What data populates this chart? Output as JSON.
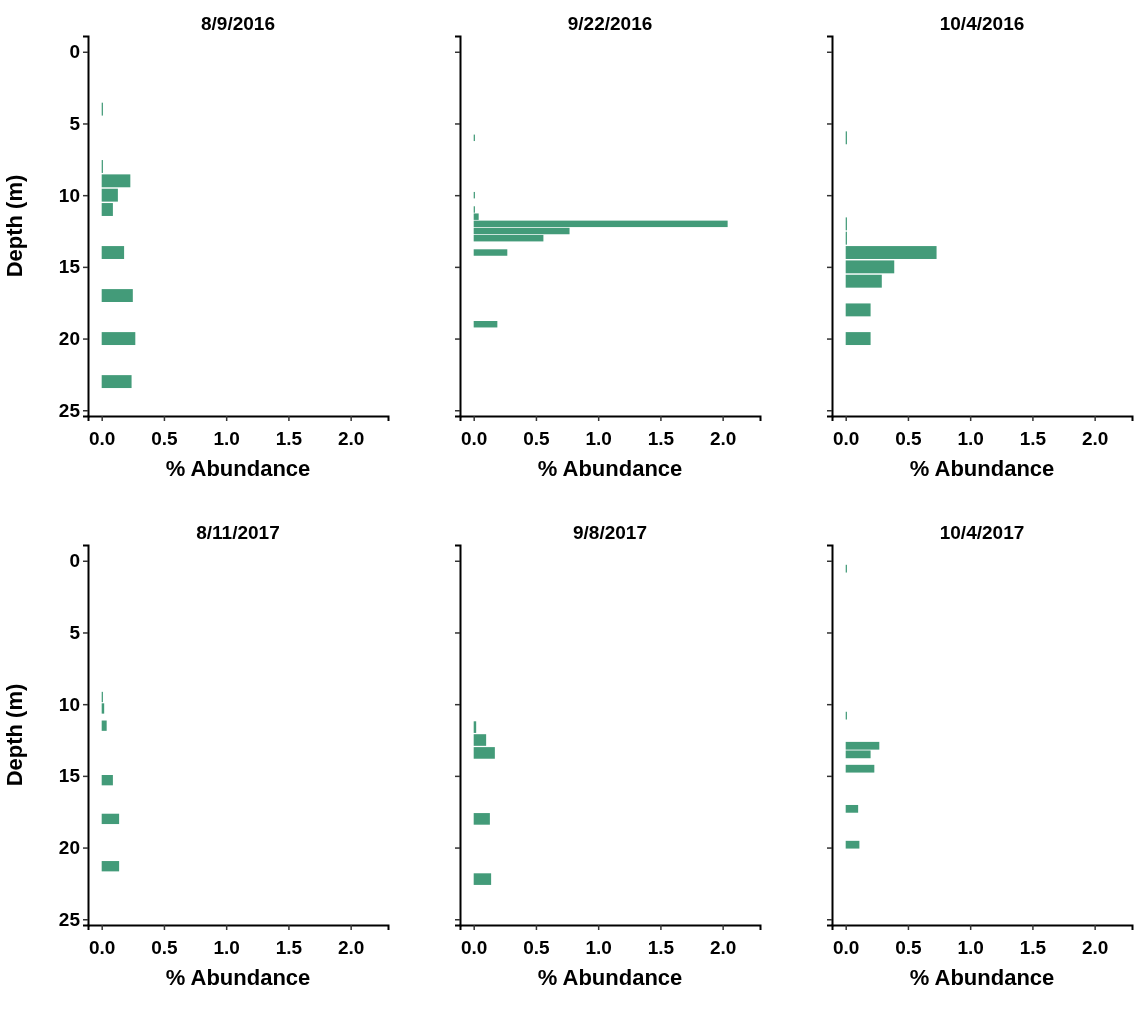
{
  "chart_data": [
    {
      "type": "bar",
      "orientation": "horizontal",
      "title": "8/9/2016",
      "xlabel": "% Abundance",
      "ylabel": "Depth (m)",
      "color": "#439b79",
      "x": [
        4,
        8,
        9,
        10,
        11,
        14,
        17,
        20,
        23
      ],
      "values": [
        0.01,
        0.01,
        0.23,
        0.13,
        0.09,
        0.18,
        0.25,
        0.27,
        0.24
      ],
      "xlim": [
        -0.11,
        2.3
      ],
      "xticks": [
        {
          "value": 0,
          "label": "0.0"
        },
        {
          "value": 0.5,
          "label": "0.5"
        },
        {
          "value": 1,
          "label": "1.0"
        },
        {
          "value": 1.5,
          "label": "1.5"
        },
        {
          "value": 2,
          "label": "2.0"
        }
      ],
      "ylim": [
        25.4,
        -1.1
      ],
      "yticks": [
        0,
        5,
        10,
        15,
        20,
        25
      ]
    },
    {
      "type": "bar",
      "orientation": "horizontal",
      "title": "9/22/2016",
      "xlabel": "% Abundance",
      "color": "#439b79",
      "x": [
        6,
        10,
        11,
        11.5,
        12,
        12.5,
        13,
        14,
        19
      ],
      "values": [
        0.01,
        0.01,
        0.01,
        0.04,
        2.04,
        0.77,
        0.56,
        0.27,
        0.19
      ],
      "xlim": [
        -0.11,
        2.3
      ],
      "xticks": [
        {
          "value": 0,
          "label": "0.0"
        },
        {
          "value": 0.5,
          "label": "0.5"
        },
        {
          "value": 1,
          "label": "1.0"
        },
        {
          "value": 1.5,
          "label": "1.5"
        },
        {
          "value": 2,
          "label": "2.0"
        }
      ],
      "ylim": [
        25.4,
        -1.1
      ],
      "yticks": [
        {
          "value": 0,
          "label": null
        },
        {
          "value": 5,
          "label": null
        },
        {
          "value": 10,
          "label": null
        },
        {
          "value": 15,
          "label": null
        },
        {
          "value": 20,
          "label": null
        },
        {
          "value": 25,
          "label": null
        }
      ],
      "tick_labels": "x"
    },
    {
      "type": "bar",
      "orientation": "horizontal",
      "title": "10/4/2016",
      "xlabel": "% Abundance",
      "color": "#439b79",
      "x": [
        6,
        12,
        13,
        14,
        15,
        16,
        18,
        20
      ],
      "values": [
        0.01,
        0.01,
        0.01,
        0.73,
        0.39,
        0.29,
        0.2,
        0.2
      ],
      "xlim": [
        -0.11,
        2.3
      ],
      "xticks": [
        {
          "value": 0,
          "label": "0.0"
        },
        {
          "value": 0.5,
          "label": "0.5"
        },
        {
          "value": 1,
          "label": "1.0"
        },
        {
          "value": 1.5,
          "label": "1.5"
        },
        {
          "value": 2,
          "label": "2.0"
        }
      ],
      "ylim": [
        25.4,
        -1.1
      ],
      "yticks": [
        {
          "value": 0,
          "label": null
        },
        {
          "value": 5,
          "label": null
        },
        {
          "value": 10,
          "label": null
        },
        {
          "value": 15,
          "label": null
        },
        {
          "value": 20,
          "label": null
        },
        {
          "value": 25,
          "label": null
        }
      ],
      "tick_labels": "x"
    },
    {
      "type": "bar",
      "orientation": "horizontal",
      "title": "8/11/2017",
      "xlabel": "% Abundance",
      "ylabel": "Depth (m)",
      "color": "#439b79",
      "x": [
        9.5,
        10.3,
        11.5,
        15.3,
        18,
        21.3
      ],
      "values": [
        0.01,
        0.02,
        0.04,
        0.09,
        0.14,
        0.14
      ],
      "xlim": [
        -0.11,
        2.3
      ],
      "xticks": [
        {
          "value": 0,
          "label": "0.0"
        },
        {
          "value": 0.5,
          "label": "0.5"
        },
        {
          "value": 1,
          "label": "1.0"
        },
        {
          "value": 1.5,
          "label": "1.5"
        },
        {
          "value": 2,
          "label": "2.0"
        }
      ],
      "ylim": [
        25.4,
        -1.1
      ],
      "yticks": [
        0,
        5,
        10,
        15,
        20,
        25
      ]
    },
    {
      "type": "bar",
      "orientation": "horizontal",
      "title": "9/8/2017",
      "xlabel": "% Abundance",
      "color": "#439b79",
      "x": [
        11.6,
        12.5,
        13.4,
        18,
        22.2
      ],
      "values": [
        0.02,
        0.1,
        0.17,
        0.13,
        0.14
      ],
      "xlim": [
        -0.11,
        2.3
      ],
      "xticks": [
        {
          "value": 0,
          "label": "0.0"
        },
        {
          "value": 0.5,
          "label": "0.5"
        },
        {
          "value": 1,
          "label": "1.0"
        },
        {
          "value": 1.5,
          "label": "1.5"
        },
        {
          "value": 2,
          "label": "2.0"
        }
      ],
      "ylim": [
        25.4,
        -1.1
      ],
      "yticks": [
        {
          "value": 0,
          "label": null
        },
        {
          "value": 5,
          "label": null
        },
        {
          "value": 10,
          "label": null
        },
        {
          "value": 15,
          "label": null
        },
        {
          "value": 20,
          "label": null
        },
        {
          "value": 25,
          "label": null
        }
      ],
      "tick_labels": "x"
    },
    {
      "type": "bar",
      "orientation": "horizontal",
      "title": "10/4/2017",
      "xlabel": "% Abundance",
      "color": "#439b79",
      "x": [
        0.55,
        10.8,
        12.9,
        13.5,
        14.5,
        17.3,
        19.8
      ],
      "values": [
        0.01,
        0.01,
        0.27,
        0.2,
        0.23,
        0.1,
        0.11
      ],
      "xlim": [
        -0.11,
        2.3
      ],
      "xticks": [
        {
          "value": 0,
          "label": "0.0"
        },
        {
          "value": 0.5,
          "label": "0.5"
        },
        {
          "value": 1,
          "label": "1.0"
        },
        {
          "value": 1.5,
          "label": "1.5"
        },
        {
          "value": 2,
          "label": "2.0"
        }
      ],
      "ylim": [
        25.4,
        -1.1
      ],
      "yticks": [
        {
          "value": 0,
          "label": null
        },
        {
          "value": 5,
          "label": null
        },
        {
          "value": 10,
          "label": null
        },
        {
          "value": 15,
          "label": null
        },
        {
          "value": 20,
          "label": null
        },
        {
          "value": 25,
          "label": null
        }
      ],
      "tick_labels": "x"
    }
  ]
}
